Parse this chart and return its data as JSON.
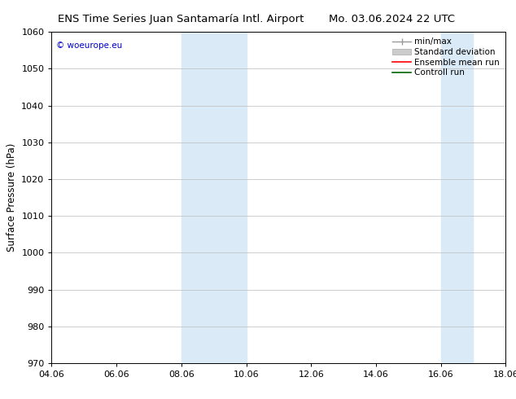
{
  "title_left": "ENS Time Series Juan Santamaría Intl. Airport",
  "title_right": "Mo. 03.06.2024 22 UTC",
  "ylabel": "Surface Pressure (hPa)",
  "ylim": [
    970,
    1060
  ],
  "yticks": [
    970,
    980,
    990,
    1000,
    1010,
    1020,
    1030,
    1040,
    1050,
    1060
  ],
  "xlim_start": 4.06,
  "xlim_end": 18.06,
  "xtick_labels": [
    "04.06",
    "06.06",
    "08.06",
    "10.06",
    "12.06",
    "14.06",
    "16.06",
    "18.06"
  ],
  "xtick_positions": [
    4.06,
    6.06,
    8.06,
    10.06,
    12.06,
    14.06,
    16.06,
    18.06
  ],
  "shaded_bands": [
    {
      "x_start": 8.06,
      "x_end": 10.06
    },
    {
      "x_start": 16.06,
      "x_end": 17.06
    }
  ],
  "shade_color": "#daeaf7",
  "watermark_text": "© woeurope.eu",
  "watermark_color": "#0000cc",
  "bg_color": "#ffffff",
  "title_fontsize": 9.5,
  "axis_label_fontsize": 8.5,
  "tick_fontsize": 8,
  "legend_fontsize": 7.5
}
